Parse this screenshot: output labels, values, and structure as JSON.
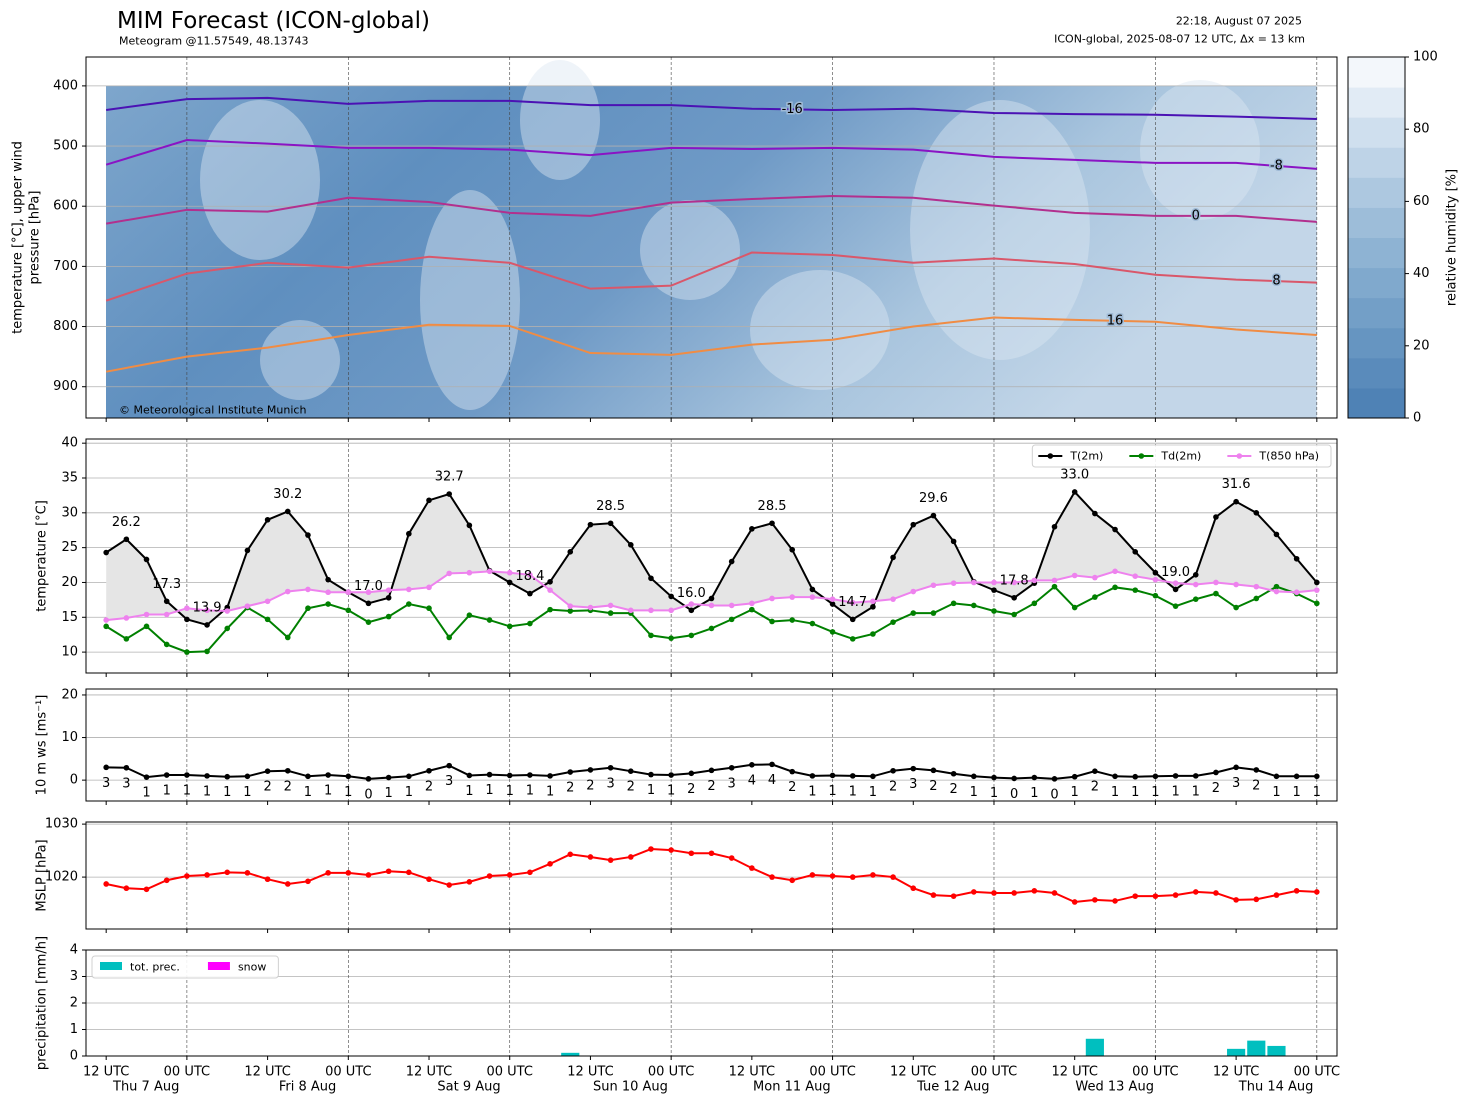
{
  "header": {
    "title": "MIM Forecast (ICON-global)",
    "subtitle": "Meteogram @11.57549, 48.13743",
    "run_time": "22:18, August 07 2025",
    "model_info": "ICON-global, 2025-08-07 12 UTC, Δx = 13 km",
    "copyright": "© Meteorological Institute Munich"
  },
  "time_axis": {
    "xlim": [
      -3,
      183
    ],
    "xticks": [
      {
        "value": 0,
        "label": "12 UTC",
        "sublabel": "Thu 7 Aug"
      },
      {
        "value": 12,
        "label": "00 UTC"
      },
      {
        "value": 24,
        "label": "12 UTC",
        "sublabel": "Fri 8 Aug"
      },
      {
        "value": 36,
        "label": "00 UTC"
      },
      {
        "value": 48,
        "label": "12 UTC",
        "sublabel": "Sat 9 Aug"
      },
      {
        "value": 60,
        "label": "00 UTC"
      },
      {
        "value": 72,
        "label": "12 UTC",
        "sublabel": "Sun 10 Aug"
      },
      {
        "value": 84,
        "label": "00 UTC"
      },
      {
        "value": 96,
        "label": "12 UTC",
        "sublabel": "Mon 11 Aug"
      },
      {
        "value": 108,
        "label": "00 UTC"
      },
      {
        "value": 120,
        "label": "12 UTC",
        "sublabel": "Tue 12 Aug"
      },
      {
        "value": 132,
        "label": "00 UTC"
      },
      {
        "value": 144,
        "label": "12 UTC",
        "sublabel": "Wed 13 Aug"
      },
      {
        "value": 156,
        "label": "00 UTC"
      },
      {
        "value": 168,
        "label": "12 UTC",
        "sublabel": "Thu 14 Aug"
      },
      {
        "value": 180,
        "label": "00 UTC"
      }
    ]
  },
  "chart_data": [
    {
      "type": "contour",
      "ylabel": [
        "temperature [°C], upper wind",
        "pressure [hPa]"
      ],
      "ylim": [
        952,
        352
      ],
      "yticks": [
        400,
        500,
        600,
        700,
        800,
        900
      ],
      "grid": true,
      "x": [
        0,
        12,
        24,
        36,
        48,
        60,
        72,
        84,
        96,
        108,
        120,
        132,
        144,
        156,
        168,
        180
      ],
      "series": [
        {
          "name": "-16",
          "color": "#4b12b4",
          "values": [
            440,
            422,
            420,
            430,
            425,
            425,
            432,
            432,
            438,
            440,
            438,
            445,
            447,
            448,
            451,
            455
          ]
        },
        {
          "name": "-8",
          "color": "#8a14c4",
          "values": [
            531,
            490,
            496,
            503,
            503,
            506,
            515,
            503,
            505,
            503,
            506,
            518,
            523,
            528,
            528,
            538
          ]
        },
        {
          "name": "0",
          "color": "#b2308e",
          "values": [
            629,
            606,
            609,
            586,
            593,
            611,
            616,
            594,
            588,
            583,
            586,
            599,
            611,
            616,
            616,
            626
          ]
        },
        {
          "name": "8",
          "color": "#d9576a",
          "values": [
            757,
            712,
            694,
            702,
            684,
            694,
            737,
            732,
            677,
            681,
            694,
            687,
            696,
            714,
            722,
            727
          ]
        },
        {
          "name": "16",
          "color": "#f08c44",
          "values": [
            875,
            850,
            835,
            814,
            797,
            799,
            844,
            847,
            830,
            822,
            800,
            785,
            789,
            792,
            805,
            814
          ]
        }
      ],
      "colorbar": {
        "label": "relative humidity [%]",
        "lim": [
          0,
          100
        ],
        "ticks": [
          0,
          20,
          40,
          60,
          80,
          100
        ],
        "colors": [
          "#4f82b5",
          "#5a8bbb",
          "#6695c1",
          "#739fc7",
          "#80a9cd",
          "#8eb3d3",
          "#9dbdd9",
          "#adc8e0",
          "#bed3e7",
          "#cfdfee",
          "#e1ebf5",
          "#f3f7fb"
        ]
      }
    },
    {
      "type": "line",
      "ylabel": "temperature [°C]",
      "ylim": [
        7,
        40.6
      ],
      "yticks": [
        10,
        15,
        20,
        25,
        30,
        35,
        40
      ],
      "grid": true,
      "legend": "upper right",
      "fill_between": [
        0,
        2
      ],
      "fill_color": "#e5e5e5",
      "x": [
        0,
        3,
        6,
        9,
        12,
        15,
        18,
        21,
        24,
        27,
        30,
        33,
        36,
        39,
        42,
        45,
        48,
        51,
        54,
        57,
        60,
        63,
        66,
        69,
        72,
        75,
        78,
        81,
        84,
        87,
        90,
        93,
        96,
        99,
        102,
        105,
        108,
        111,
        114,
        117,
        120,
        123,
        126,
        129,
        132,
        135,
        138,
        141,
        144,
        147,
        150,
        153,
        156,
        159,
        162,
        165,
        168,
        171,
        174,
        177,
        180
      ],
      "series": [
        {
          "name": "T(2m)",
          "color": "#000000",
          "values": [
            24.3,
            26.2,
            23.3,
            17.3,
            14.7,
            13.9,
            16.4,
            24.6,
            29.0,
            30.2,
            26.8,
            20.4,
            18.6,
            17.0,
            17.8,
            27.0,
            31.8,
            32.7,
            28.2,
            21.7,
            20.0,
            18.4,
            20.1,
            24.4,
            28.3,
            28.5,
            25.4,
            20.6,
            18.0,
            16.0,
            17.7,
            23.0,
            27.7,
            28.5,
            24.7,
            19.0,
            16.9,
            14.7,
            16.5,
            23.6,
            28.3,
            29.6,
            25.9,
            20.1,
            18.9,
            17.8,
            19.9,
            28.0,
            33.0,
            29.9,
            27.6,
            24.4,
            21.4,
            19.0,
            21.1,
            29.4,
            31.6,
            30.0,
            26.9,
            23.4,
            20.0
          ]
        },
        {
          "name": "Td(2m)",
          "color": "#008000",
          "values": [
            13.7,
            11.9,
            13.7,
            11.1,
            10.0,
            10.1,
            13.4,
            16.4,
            14.7,
            12.1,
            16.3,
            16.9,
            16.0,
            14.3,
            15.1,
            16.9,
            16.3,
            12.1,
            15.3,
            14.6,
            13.7,
            14.1,
            16.1,
            15.9,
            16.0,
            15.6,
            15.6,
            12.4,
            12.0,
            12.4,
            13.4,
            14.7,
            16.1,
            14.4,
            14.6,
            14.1,
            12.9,
            11.9,
            12.6,
            14.3,
            15.6,
            15.6,
            17.0,
            16.7,
            15.9,
            15.4,
            17.0,
            19.4,
            16.4,
            17.9,
            19.3,
            18.9,
            18.1,
            16.6,
            17.6,
            18.4,
            16.4,
            17.7,
            19.4,
            18.4,
            17.0
          ]
        },
        {
          "name": "T(850 hPa)",
          "color": "#ee82ee",
          "values": [
            14.6,
            14.9,
            15.4,
            15.4,
            16.3,
            16.0,
            15.9,
            16.6,
            17.3,
            18.7,
            19.0,
            18.6,
            18.6,
            18.6,
            18.9,
            19.0,
            19.3,
            21.3,
            21.4,
            21.6,
            21.4,
            21.1,
            18.9,
            16.6,
            16.4,
            16.7,
            16.0,
            16.0,
            16.0,
            16.9,
            16.7,
            16.7,
            17.0,
            17.7,
            17.9,
            17.9,
            17.6,
            17.1,
            17.3,
            17.6,
            18.7,
            19.6,
            19.9,
            20.0,
            20.0,
            20.0,
            20.3,
            20.3,
            21.0,
            20.7,
            21.6,
            20.9,
            20.4,
            19.9,
            19.7,
            20.0,
            19.7,
            19.4,
            18.7,
            18.6,
            18.9
          ]
        }
      ],
      "extreme_colors": {
        "max": "#ff0000",
        "min": "#0000ff"
      },
      "extremes": [
        {
          "x": 3,
          "value": 26.2,
          "kind": "max"
        },
        {
          "x": 9,
          "value": 17.3,
          "kind": "min"
        },
        {
          "x": 15,
          "value": 13.9,
          "kind": "min"
        },
        {
          "x": 27,
          "value": 30.2,
          "kind": "max"
        },
        {
          "x": 39,
          "value": 17,
          "label": "17.0",
          "kind": "min"
        },
        {
          "x": 51,
          "value": 32.7,
          "kind": "max"
        },
        {
          "x": 63,
          "value": 18.4,
          "kind": "min"
        },
        {
          "x": 75,
          "value": 28.5,
          "kind": "max"
        },
        {
          "x": 87,
          "value": 16,
          "label": "16.0",
          "kind": "min"
        },
        {
          "x": 99,
          "value": 28.5,
          "kind": "max"
        },
        {
          "x": 111,
          "value": 14.7,
          "kind": "min"
        },
        {
          "x": 123,
          "value": 29.6,
          "kind": "max"
        },
        {
          "x": 135,
          "value": 17.8,
          "kind": "min"
        },
        {
          "x": 144,
          "value": 33,
          "label": "33.0",
          "kind": "max"
        },
        {
          "x": 159,
          "value": 19,
          "label": "19.0",
          "kind": "min"
        },
        {
          "x": 168,
          "value": 31.6,
          "kind": "max"
        }
      ]
    },
    {
      "type": "line",
      "ylabel": "10 m ws [ms⁻¹]",
      "ylim": [
        -4.9,
        21.4
      ],
      "yticks": [
        0,
        10,
        20
      ],
      "grid": true,
      "x": [
        0,
        3,
        6,
        9,
        12,
        15,
        18,
        21,
        24,
        27,
        30,
        33,
        36,
        39,
        42,
        45,
        48,
        51,
        54,
        57,
        60,
        63,
        66,
        69,
        72,
        75,
        78,
        81,
        84,
        87,
        90,
        93,
        96,
        99,
        102,
        105,
        108,
        111,
        114,
        117,
        120,
        123,
        126,
        129,
        132,
        135,
        138,
        141,
        144,
        147,
        150,
        153,
        156,
        159,
        162,
        165,
        168,
        171,
        174,
        177,
        180
      ],
      "color": "#000000",
      "values": [
        3.0,
        2.9,
        0.7,
        1.2,
        1.2,
        1.0,
        0.8,
        0.9,
        2.1,
        2.2,
        0.9,
        1.2,
        0.9,
        0.3,
        0.6,
        0.9,
        2.2,
        3.4,
        1.1,
        1.3,
        1.1,
        1.2,
        1.0,
        1.9,
        2.4,
        2.9,
        2.1,
        1.3,
        1.2,
        1.6,
        2.3,
        2.9,
        3.6,
        3.7,
        2.0,
        1.0,
        1.1,
        1.0,
        0.9,
        2.2,
        2.7,
        2.3,
        1.5,
        0.9,
        0.6,
        0.4,
        0.6,
        0.3,
        0.8,
        2.1,
        0.9,
        0.8,
        0.9,
        1.0,
        1.0,
        1.8,
        3.0,
        2.4,
        0.9,
        0.9,
        0.9
      ],
      "value_labels": [
        "3",
        "3",
        "1",
        "1",
        "1",
        "1",
        "1",
        "1",
        "2",
        "2",
        "1",
        "1",
        "1",
        "0",
        "1",
        "1",
        "2",
        "3",
        "1",
        "1",
        "1",
        "1",
        "1",
        "2",
        "2",
        "3",
        "2",
        "1",
        "1",
        "2",
        "2",
        "3",
        "4",
        "4",
        "2",
        "1",
        "1",
        "1",
        "1",
        "2",
        "3",
        "2",
        "2",
        "1",
        "1",
        "0",
        "1",
        "0",
        "1",
        "2",
        "1",
        "1",
        "1",
        "1",
        "1",
        "2",
        "3",
        "2",
        "1",
        "1",
        "1"
      ]
    },
    {
      "type": "line",
      "ylabel": "MSLP [hPa]",
      "ylim": [
        1010.2,
        1030.4
      ],
      "yticks": [
        1020,
        1030
      ],
      "grid": true,
      "x": [
        0,
        3,
        6,
        9,
        12,
        15,
        18,
        21,
        24,
        27,
        30,
        33,
        36,
        39,
        42,
        45,
        48,
        51,
        54,
        57,
        60,
        63,
        66,
        69,
        72,
        75,
        78,
        81,
        84,
        87,
        90,
        93,
        96,
        99,
        102,
        105,
        108,
        111,
        114,
        117,
        120,
        123,
        126,
        129,
        132,
        135,
        138,
        141,
        144,
        147,
        150,
        153,
        156,
        159,
        162,
        165,
        168,
        171,
        174,
        177,
        180
      ],
      "color": "#ff0000",
      "values": [
        1018.7,
        1017.9,
        1017.7,
        1019.4,
        1020.2,
        1020.4,
        1020.9,
        1020.8,
        1019.6,
        1018.7,
        1019.2,
        1020.8,
        1020.8,
        1020.4,
        1021.1,
        1020.9,
        1019.6,
        1018.5,
        1019.1,
        1020.2,
        1020.4,
        1020.9,
        1022.5,
        1024.3,
        1023.8,
        1023.2,
        1023.8,
        1025.3,
        1025.1,
        1024.5,
        1024.5,
        1023.6,
        1021.7,
        1020.0,
        1019.4,
        1020.4,
        1020.2,
        1020.0,
        1020.4,
        1020.0,
        1017.9,
        1016.6,
        1016.4,
        1017.2,
        1017.0,
        1017.0,
        1017.4,
        1017.0,
        1015.3,
        1015.7,
        1015.5,
        1016.4,
        1016.4,
        1016.6,
        1017.2,
        1017.0,
        1015.7,
        1015.8,
        1016.6,
        1017.4,
        1017.2
      ]
    },
    {
      "type": "bar",
      "ylabel": "precipitation [mm/h]",
      "ylim": [
        0,
        4
      ],
      "yticks": [
        0,
        1,
        2,
        3,
        4
      ],
      "grid": true,
      "legend": "upper left",
      "x": [
        0,
        3,
        6,
        9,
        12,
        15,
        18,
        21,
        24,
        27,
        30,
        33,
        36,
        39,
        42,
        45,
        48,
        51,
        54,
        57,
        60,
        63,
        66,
        69,
        72,
        75,
        78,
        81,
        84,
        87,
        90,
        93,
        96,
        99,
        102,
        105,
        108,
        111,
        114,
        117,
        120,
        123,
        126,
        129,
        132,
        135,
        138,
        141,
        144,
        147,
        150,
        153,
        156,
        159,
        162,
        165,
        168,
        171,
        174,
        177,
        180
      ],
      "series": [
        {
          "name": "tot. prec.",
          "color": "#00bfbf",
          "values": [
            0,
            0,
            0,
            0,
            0,
            0,
            0,
            0,
            0,
            0,
            0,
            0,
            0,
            0,
            0,
            0,
            0,
            0,
            0,
            0,
            0,
            0,
            0,
            0.12,
            0,
            0,
            0,
            0,
            0,
            0,
            0,
            0,
            0,
            0,
            0,
            0,
            0,
            0,
            0,
            0,
            0,
            0,
            0,
            0,
            0,
            0,
            0,
            0,
            0,
            0.65,
            0,
            0,
            0,
            0,
            0,
            0,
            0.27,
            0.58,
            0.38,
            0,
            0
          ]
        },
        {
          "name": "snow",
          "color": "#ff00ff",
          "values": [
            0,
            0,
            0,
            0,
            0,
            0,
            0,
            0,
            0,
            0,
            0,
            0,
            0,
            0,
            0,
            0,
            0,
            0,
            0,
            0,
            0,
            0,
            0,
            0,
            0,
            0,
            0,
            0,
            0,
            0,
            0,
            0,
            0,
            0,
            0,
            0,
            0,
            0,
            0,
            0,
            0,
            0,
            0,
            0,
            0,
            0,
            0,
            0,
            0,
            0,
            0,
            0,
            0,
            0,
            0,
            0,
            0,
            0,
            0,
            0,
            0
          ]
        }
      ]
    }
  ]
}
